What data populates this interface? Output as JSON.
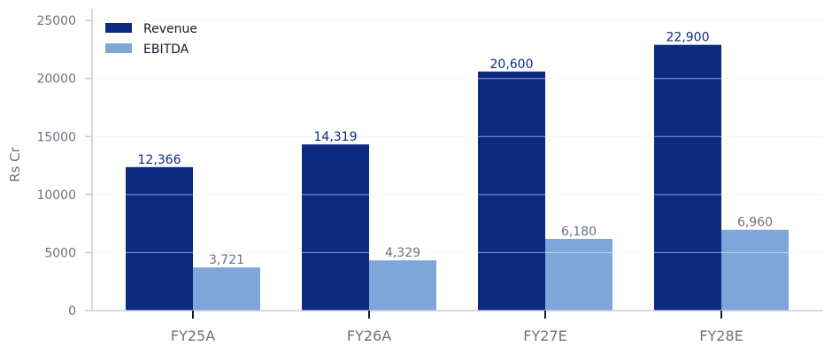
{
  "chart_data": {
    "type": "bar",
    "categories": [
      "FY25A",
      "FY26A",
      "FY27E",
      "FY28E"
    ],
    "series": [
      {
        "name": "Revenue",
        "values": [
          12366,
          14319,
          20600,
          22900
        ],
        "labels": [
          "12,366",
          "14,319",
          "20,600",
          "22,900"
        ],
        "color": "#0b2a80",
        "label_color": "#0b2a80"
      },
      {
        "name": "EBITDA",
        "values": [
          3721,
          4329,
          6180,
          6960
        ],
        "labels": [
          "3,721",
          "4,329",
          "6,180",
          "6,960"
        ],
        "color": "#7fa6d9",
        "label_color": "#6b7280"
      }
    ],
    "ylabel": "Rs Cr",
    "xlabel": "",
    "ylim": [
      0,
      26000
    ],
    "yticks": [
      0,
      5000,
      10000,
      15000,
      20000,
      25000
    ],
    "ytick_labels": [
      "0",
      "5000",
      "10000",
      "15000",
      "20000",
      "25000"
    ],
    "grid": true,
    "legend_position": "top-left"
  },
  "colors": {
    "axis": "#c7cbe6",
    "grid": "#eceef6",
    "tick": "#1a1a1a"
  }
}
